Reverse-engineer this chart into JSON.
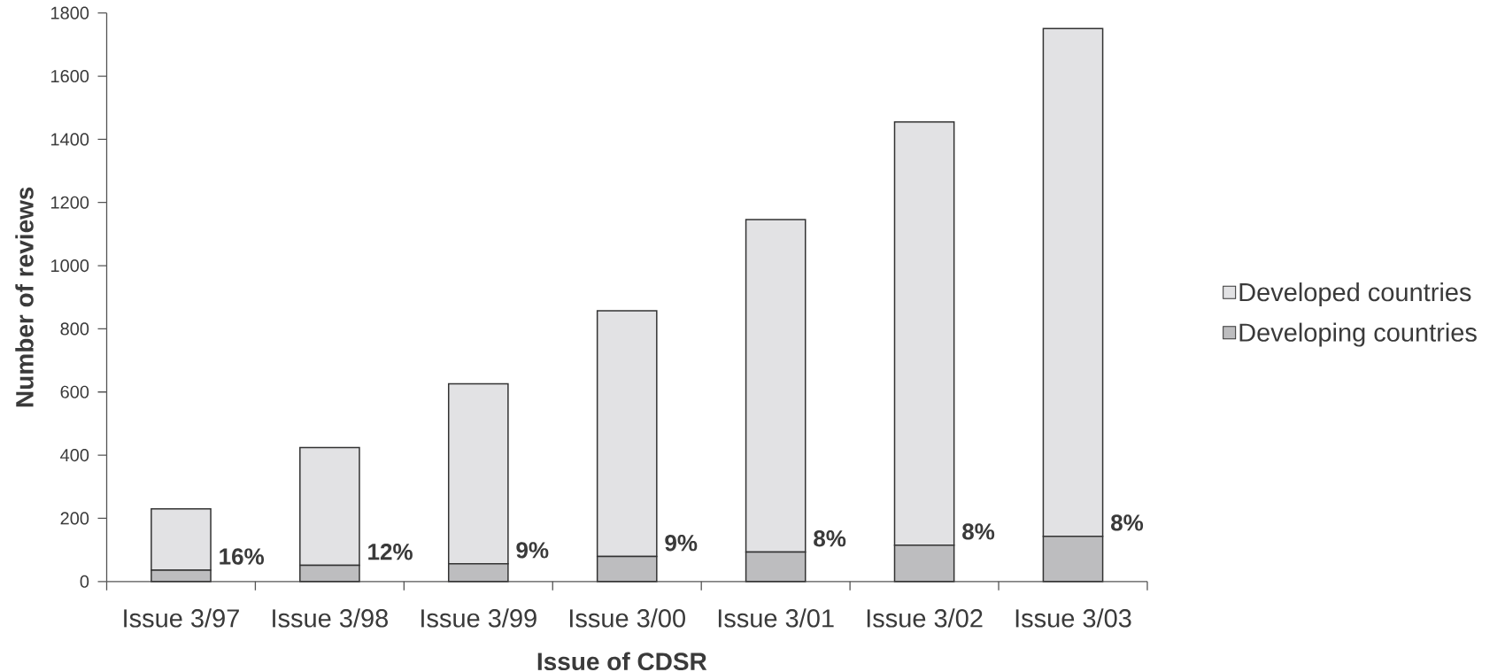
{
  "chart_data": {
    "type": "bar",
    "stacked": true,
    "xlabel": "Issue of CDSR",
    "ylabel": "Number of reviews",
    "categories": [
      "Issue 3/97",
      "Issue 3/98",
      "Issue 3/99",
      "Issue 3/00",
      "Issue 3/01",
      "Issue 3/02",
      "Issue 3/03"
    ],
    "series": [
      {
        "name": "Developing countries",
        "color": "#bdbdbf",
        "values": [
          36,
          51,
          56,
          79,
          93,
          115,
          143
        ]
      },
      {
        "name": "Developed countries",
        "color": "#e2e2e4",
        "values": [
          194,
          373,
          570,
          778,
          1053,
          1340,
          1608
        ]
      }
    ],
    "ylim": [
      0,
      1800
    ],
    "yticks": [
      0,
      200,
      400,
      600,
      800,
      1000,
      1200,
      1400,
      1600,
      1800
    ],
    "legend": "right",
    "annotations": [
      {
        "text": "16%",
        "x": "Issue 3/97",
        "y": 36
      },
      {
        "text": "12%",
        "x": "Issue 3/98",
        "y": 51
      },
      {
        "text": "9%",
        "x": "Issue 3/99",
        "y": 56
      },
      {
        "text": "9%",
        "x": "Issue 3/00",
        "y": 79
      },
      {
        "text": "8%",
        "x": "Issue 3/01",
        "y": 93
      },
      {
        "text": "8%",
        "x": "Issue 3/02",
        "y": 115
      },
      {
        "text": "8%",
        "x": "Issue 3/03",
        "y": 143
      }
    ]
  }
}
